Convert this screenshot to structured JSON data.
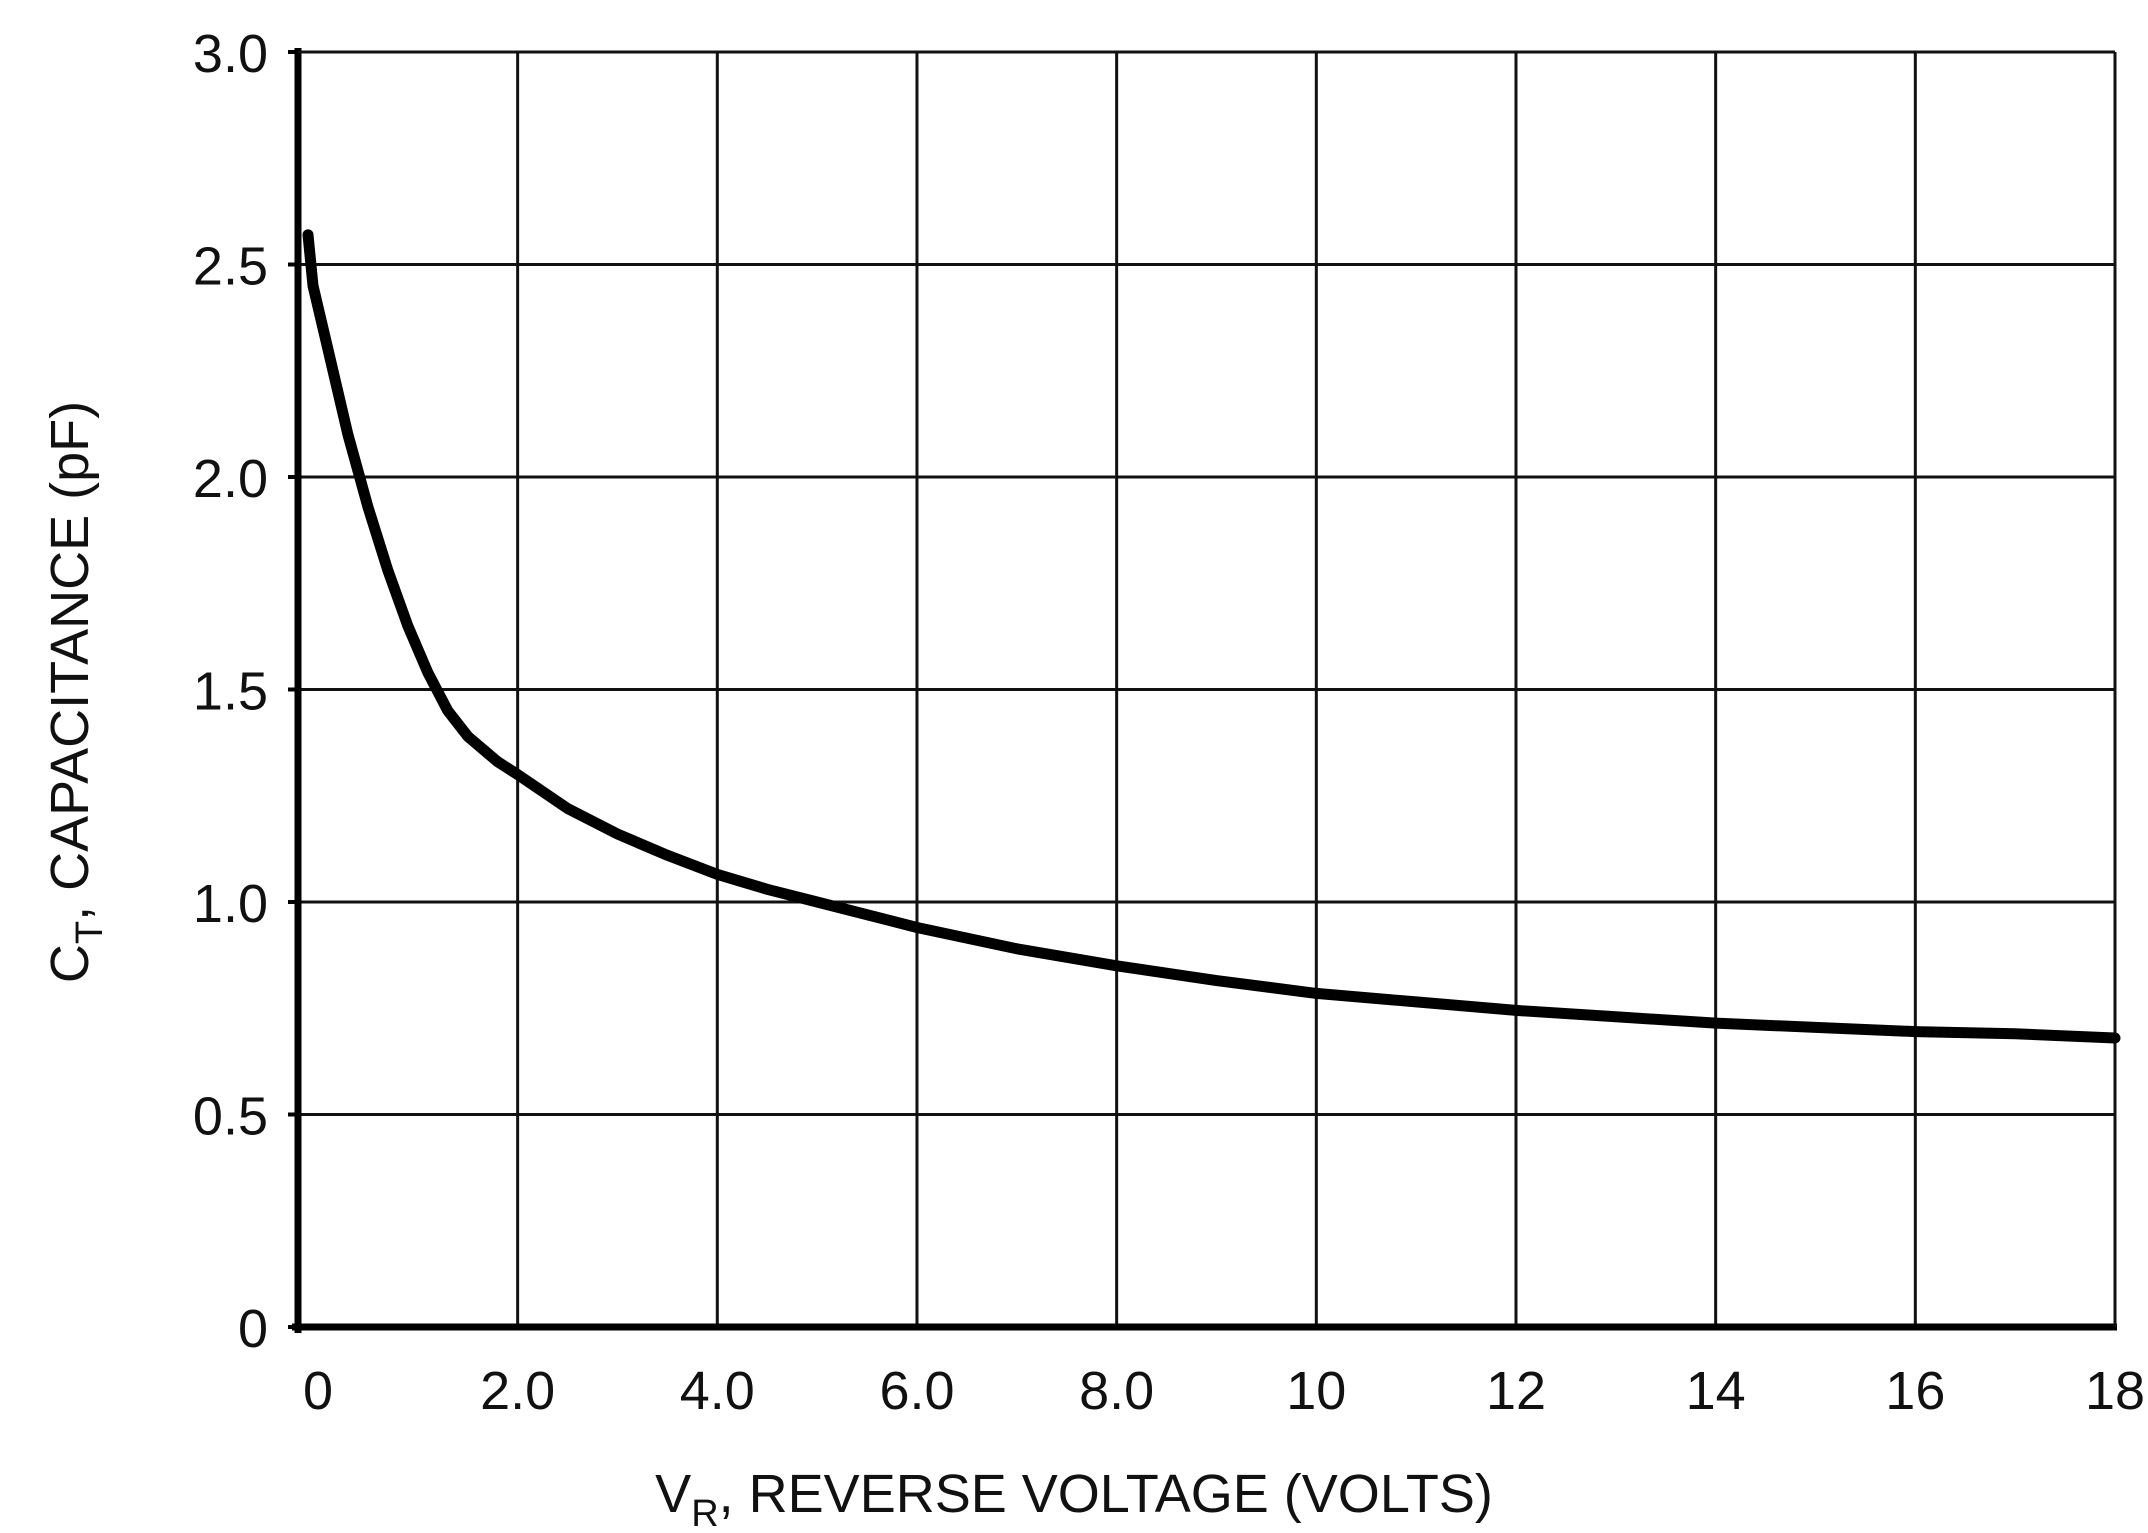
{
  "chart_data": {
    "type": "line",
    "title": "",
    "xlabel": {
      "main": "V",
      "sub": "R",
      "rest": ", REVERSE VOLTAGE (VOLTS)"
    },
    "ylabel": {
      "main": "C",
      "sub": "T",
      "rest": ", CAPACITANCE (pF)"
    },
    "xlim": [
      -0.2,
      18
    ],
    "ylim": [
      0,
      3.0
    ],
    "grid": true,
    "legend": "none",
    "x_ticks": [
      {
        "value": 0,
        "label": "0"
      },
      {
        "value": 2,
        "label": "2.0"
      },
      {
        "value": 4,
        "label": "4.0"
      },
      {
        "value": 6,
        "label": "6.0"
      },
      {
        "value": 8,
        "label": "8.0"
      },
      {
        "value": 10,
        "label": "10"
      },
      {
        "value": 12,
        "label": "12"
      },
      {
        "value": 14,
        "label": "14"
      },
      {
        "value": 16,
        "label": "16"
      },
      {
        "value": 18,
        "label": "18"
      }
    ],
    "y_ticks": [
      {
        "value": 0,
        "label": "0"
      },
      {
        "value": 0.5,
        "label": "0.5"
      },
      {
        "value": 1.0,
        "label": "1.0"
      },
      {
        "value": 1.5,
        "label": "1.5"
      },
      {
        "value": 2.0,
        "label": "2.0"
      },
      {
        "value": 2.5,
        "label": "2.5"
      },
      {
        "value": 3.0,
        "label": "3.0"
      }
    ],
    "series": [
      {
        "color": "#000000",
        "points": [
          {
            "x": -0.1,
            "y": 2.57
          },
          {
            "x": -0.05,
            "y": 2.45
          },
          {
            "x": 0.1,
            "y": 2.3
          },
          {
            "x": 0.3,
            "y": 2.1
          },
          {
            "x": 0.5,
            "y": 1.93
          },
          {
            "x": 0.7,
            "y": 1.78
          },
          {
            "x": 0.9,
            "y": 1.65
          },
          {
            "x": 1.1,
            "y": 1.54
          },
          {
            "x": 1.3,
            "y": 1.45
          },
          {
            "x": 1.5,
            "y": 1.39
          },
          {
            "x": 1.8,
            "y": 1.33
          },
          {
            "x": 2.0,
            "y": 1.3
          },
          {
            "x": 2.5,
            "y": 1.22
          },
          {
            "x": 3.0,
            "y": 1.16
          },
          {
            "x": 3.5,
            "y": 1.11
          },
          {
            "x": 4.0,
            "y": 1.065
          },
          {
            "x": 4.5,
            "y": 1.03
          },
          {
            "x": 5.0,
            "y": 1.0
          },
          {
            "x": 6.0,
            "y": 0.94
          },
          {
            "x": 7.0,
            "y": 0.89
          },
          {
            "x": 8.0,
            "y": 0.85
          },
          {
            "x": 9.0,
            "y": 0.815
          },
          {
            "x": 10.0,
            "y": 0.785
          },
          {
            "x": 11.0,
            "y": 0.765
          },
          {
            "x": 12.0,
            "y": 0.745
          },
          {
            "x": 13.0,
            "y": 0.73
          },
          {
            "x": 14.0,
            "y": 0.715
          },
          {
            "x": 15.0,
            "y": 0.705
          },
          {
            "x": 16.0,
            "y": 0.695
          },
          {
            "x": 17.0,
            "y": 0.69
          },
          {
            "x": 18.0,
            "y": 0.68
          }
        ]
      }
    ]
  }
}
